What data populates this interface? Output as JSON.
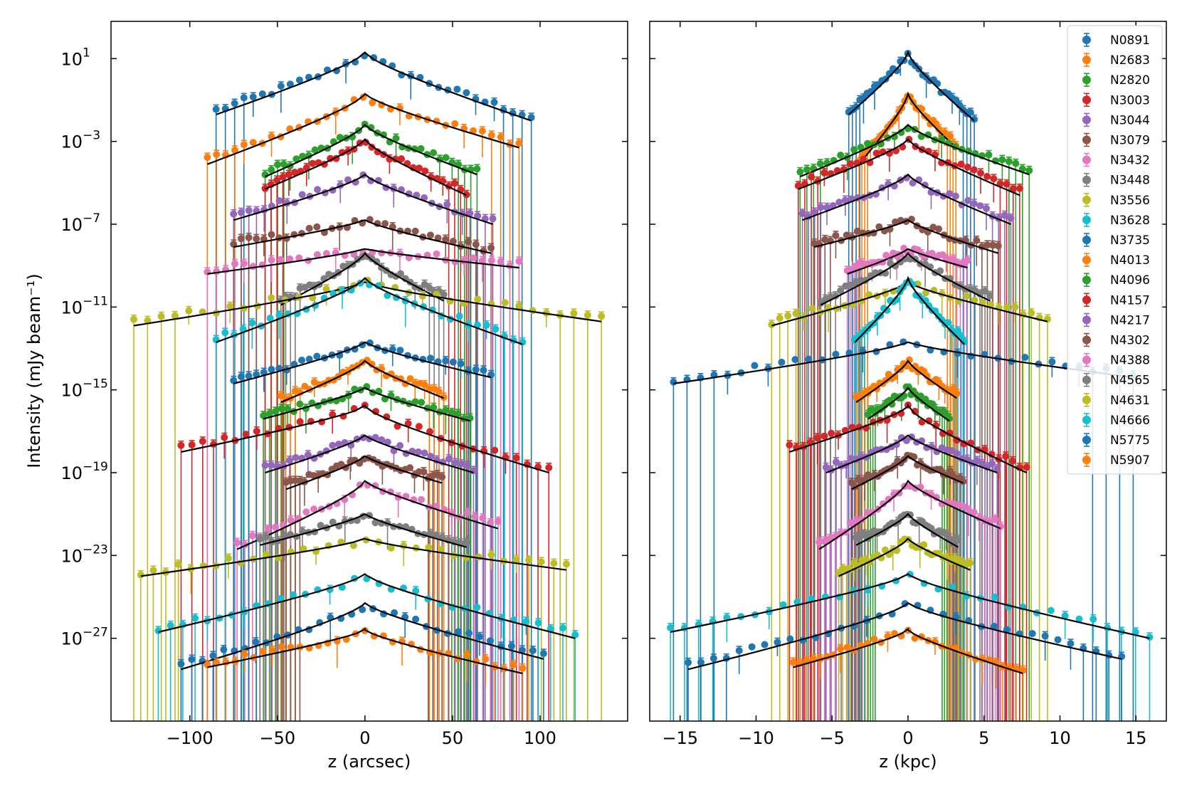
{
  "chart_data": {
    "type": "scatter",
    "title": "",
    "ylabel": "Intensity (mJy beam⁻¹)",
    "yscale": "log",
    "ylim_exp": [
      -31,
      2.8
    ],
    "ytick_labels": [
      "10",
      "10",
      "10",
      "10",
      "10",
      "10",
      "10",
      "10"
    ],
    "ytick_exps": [
      "1",
      "−3",
      "−7",
      "−11",
      "−15",
      "−19",
      "−23",
      "−27"
    ],
    "ytick_values_exp": [
      1,
      -3,
      -7,
      -11,
      -15,
      -19,
      -23,
      -27
    ],
    "legend_position": "top-right of right panel",
    "legend": [
      {
        "name": "N0891",
        "color": "#1f77b4"
      },
      {
        "name": "N2683",
        "color": "#ff7f0e"
      },
      {
        "name": "N2820",
        "color": "#2ca02c"
      },
      {
        "name": "N3003",
        "color": "#d62728"
      },
      {
        "name": "N3044",
        "color": "#9467bd"
      },
      {
        "name": "N3079",
        "color": "#8c564b"
      },
      {
        "name": "N3432",
        "color": "#e377c2"
      },
      {
        "name": "N3448",
        "color": "#7f7f7f"
      },
      {
        "name": "N3556",
        "color": "#bcbd22"
      },
      {
        "name": "N3628",
        "color": "#17becf"
      },
      {
        "name": "N3735",
        "color": "#1f77b4"
      },
      {
        "name": "N4013",
        "color": "#ff7f0e"
      },
      {
        "name": "N4096",
        "color": "#2ca02c"
      },
      {
        "name": "N4157",
        "color": "#d62728"
      },
      {
        "name": "N4217",
        "color": "#9467bd"
      },
      {
        "name": "N4302",
        "color": "#8c564b"
      },
      {
        "name": "N4388",
        "color": "#e377c2"
      },
      {
        "name": "N4565",
        "color": "#7f7f7f"
      },
      {
        "name": "N4631",
        "color": "#bcbd22"
      },
      {
        "name": "N4666",
        "color": "#17becf"
      },
      {
        "name": "N5775",
        "color": "#1f77b4"
      },
      {
        "name": "N5907",
        "color": "#ff7f0e"
      }
    ],
    "series": [
      {
        "name": "N0891",
        "peak": 1.3,
        "lext": -85,
        "rext": 95,
        "lval": -1.5,
        "rval": -1.8,
        "kpc_scale": 0.0459
      },
      {
        "name": "N2683",
        "peak": -0.7,
        "lext": -90,
        "rext": 88,
        "lval": -3.9,
        "rval": -3.1,
        "kpc_scale": 0.0358
      },
      {
        "name": "N2820",
        "peak": -2.2,
        "lext": -57,
        "rext": 64,
        "lval": -4.5,
        "rval": -4.4,
        "kpc_scale": 0.1246
      },
      {
        "name": "N3003",
        "peak": -2.9,
        "lext": -57,
        "rext": 58,
        "lval": -5.1,
        "rval": -5.4,
        "kpc_scale": 0.1267
      },
      {
        "name": "N3044",
        "peak": -4.6,
        "lext": -75,
        "rext": 73,
        "lval": -6.6,
        "rval": -6.8,
        "kpc_scale": 0.0927
      },
      {
        "name": "N3079",
        "peak": -6.8,
        "lext": -75,
        "rext": 72,
        "lval": -7.9,
        "rval": -8.2,
        "kpc_scale": 0.0824
      },
      {
        "name": "N3432",
        "peak": -8.2,
        "lext": -90,
        "rext": 88,
        "lval": -9.2,
        "rval": -8.9,
        "kpc_scale": 0.0444
      },
      {
        "name": "N3448",
        "peak": -8.4,
        "lext": -48,
        "rext": 45,
        "lval": -10.7,
        "rval": -10.5,
        "kpc_scale": 0.1198
      },
      {
        "name": "N3556",
        "peak": -9.8,
        "lext": -132,
        "rext": 135,
        "lval": -11.7,
        "rval": -11.5,
        "kpc_scale": 0.068
      },
      {
        "name": "N3628",
        "peak": -9.6,
        "lext": -85,
        "rext": 90,
        "lval": -12.5,
        "rval": -12.6,
        "kpc_scale": 0.0412
      },
      {
        "name": "N3735",
        "peak": -12.7,
        "lext": -75,
        "rext": 72,
        "lval": -14.5,
        "rval": -14.2,
        "kpc_scale": 0.2058
      },
      {
        "name": "N4013",
        "peak": -13.6,
        "lext": -48,
        "rext": 45,
        "lval": -15.4,
        "rval": -15.2,
        "kpc_scale": 0.0711
      },
      {
        "name": "N4096",
        "peak": -14.9,
        "lext": -58,
        "rext": 60,
        "lval": -16.2,
        "rval": -16.3,
        "kpc_scale": 0.0453
      },
      {
        "name": "N4157",
        "peak": -15.8,
        "lext": -105,
        "rext": 105,
        "lval": -17.8,
        "rval": -18.8,
        "kpc_scale": 0.0743
      },
      {
        "name": "N4217",
        "peak": -17.2,
        "lext": -57,
        "rext": 62,
        "lval": -18.8,
        "rval": -18.8,
        "kpc_scale": 0.0946
      },
      {
        "name": "N4302",
        "peak": -18.2,
        "lext": -45,
        "rext": 44,
        "lval": -19.6,
        "rval": -19.3,
        "kpc_scale": 0.0825
      },
      {
        "name": "N4388",
        "peak": -19.4,
        "lext": -73,
        "rext": 76,
        "lval": -22.5,
        "rval": -21.5,
        "kpc_scale": 0.0801
      },
      {
        "name": "N4565",
        "peak": -21.0,
        "lext": -60,
        "rext": 58,
        "lval": -22.3,
        "rval": -22.4,
        "kpc_scale": 0.057
      },
      {
        "name": "N4631",
        "peak": -22.2,
        "lext": -128,
        "rext": 115,
        "lval": -23.8,
        "rval": -23.5,
        "kpc_scale": 0.0356
      },
      {
        "name": "N4666",
        "peak": -23.9,
        "lext": -118,
        "rext": 120,
        "lval": -26.5,
        "rval": -26.8,
        "kpc_scale": 0.1325
      },
      {
        "name": "N5775",
        "peak": -25.3,
        "lext": -105,
        "rext": 102,
        "lval": -28.3,
        "rval": -27.8,
        "kpc_scale": 0.1378
      },
      {
        "name": "N5907",
        "peak": -26.6,
        "lext": -90,
        "rext": 90,
        "lval": -28.2,
        "rval": -28.5,
        "kpc_scale": 0.084
      }
    ]
  },
  "panels": {
    "left": {
      "xlabel": "z (arcsec)",
      "xlim": [
        -145,
        150
      ],
      "xticks": [
        -100,
        -50,
        0,
        50,
        100
      ],
      "xtick_labels": [
        "−100",
        "−50",
        "0",
        "50",
        "100"
      ]
    },
    "right": {
      "xlabel": "z (kpc)",
      "xlim": [
        -17,
        17
      ],
      "xticks": [
        -15,
        -10,
        -5,
        0,
        5,
        10,
        15
      ],
      "xtick_labels": [
        "−15",
        "−10",
        "−5",
        "0",
        "5",
        "10",
        "15"
      ]
    }
  }
}
